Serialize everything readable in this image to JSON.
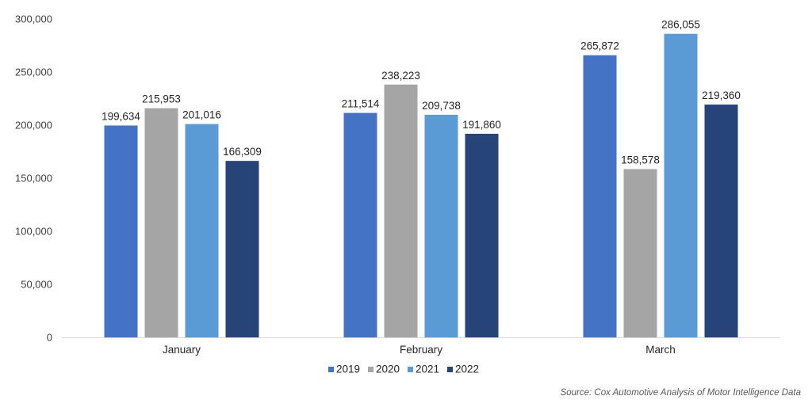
{
  "chart_data": {
    "type": "bar",
    "title": "",
    "xlabel": "",
    "ylabel": "",
    "categories": [
      "January",
      "February",
      "March"
    ],
    "series": [
      {
        "name": "2019",
        "color": "#4472C4",
        "values": [
          199634,
          211514,
          265872
        ]
      },
      {
        "name": "2020",
        "color": "#A5A5A5",
        "values": [
          215953,
          238223,
          158578
        ]
      },
      {
        "name": "2021",
        "color": "#5B9BD5",
        "values": [
          201016,
          209738,
          286055
        ]
      },
      {
        "name": "2022",
        "color": "#264478",
        "values": [
          166309,
          191860,
          219360
        ]
      }
    ],
    "ylim": [
      0,
      300000
    ],
    "yticks": [
      0,
      50000,
      100000,
      150000,
      200000,
      250000,
      300000
    ],
    "ytick_labels": [
      "0",
      "50,000",
      "100,000",
      "150,000",
      "200,000",
      "250,000",
      "300,000"
    ],
    "grid": false,
    "legend_position": "bottom-center",
    "data_labels": true
  },
  "source": "Source: Cox Automotive Analysis of Motor Intelligence Data"
}
